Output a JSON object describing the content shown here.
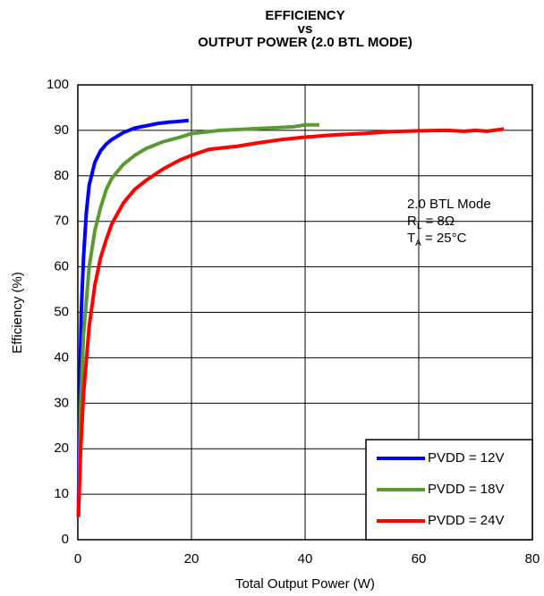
{
  "chart_data": {
    "type": "line",
    "title": [
      "EFFICIENCY",
      "vs",
      "OUTPUT POWER (2.0 BTL MODE)"
    ],
    "x_label": "Total Output Power (W)",
    "y_label": "Efficiency (%)",
    "xlim": [
      0,
      80
    ],
    "xticks": [
      0,
      20,
      40,
      60,
      80
    ],
    "ylim": [
      0,
      100
    ],
    "yticks": [
      0,
      10,
      20,
      30,
      40,
      50,
      60,
      70,
      80,
      90,
      100
    ],
    "grid": true,
    "legend": "lower right",
    "annotation": [
      {
        "main": "2.0 BTL Mode"
      },
      {
        "main": "R",
        "sub": "L",
        "after": " = 8Ω"
      },
      {
        "main": "T",
        "sub": "A",
        "after": " = 25°C"
      }
    ],
    "series": [
      {
        "name": "PVDD = 12V",
        "color": "#0000ff",
        "x": [
          0.1,
          0.3,
          0.6,
          1,
          1.5,
          2,
          3,
          4,
          5,
          6,
          8,
          10,
          12,
          14,
          16,
          18,
          19.5
        ],
        "values": [
          5,
          30,
          50,
          62,
          72,
          78,
          83,
          85.5,
          87,
          88,
          89.5,
          90.5,
          91,
          91.5,
          91.8,
          92,
          92.2
        ]
      },
      {
        "name": "PVDD = 18V",
        "color": "#5b9a32",
        "x": [
          0.2,
          0.5,
          1,
          2,
          3,
          4,
          5,
          6,
          8,
          10,
          12,
          15,
          18,
          20,
          25,
          30,
          35,
          38,
          40,
          42.5
        ],
        "values": [
          10,
          30,
          45,
          60,
          68,
          73,
          77,
          79.5,
          82.5,
          84.5,
          86,
          87.5,
          88.5,
          89.3,
          90,
          90.3,
          90.6,
          90.8,
          91.2,
          91.2
        ]
      },
      {
        "name": "PVDD = 24V",
        "color": "#ff0000",
        "x": [
          0.1,
          0.5,
          1,
          2,
          3,
          4,
          5,
          6,
          8,
          10,
          12,
          15,
          18,
          20,
          23,
          28,
          32,
          36,
          40,
          45,
          50,
          55,
          60,
          65,
          68,
          70,
          72,
          75
        ],
        "values": [
          5,
          20,
          32,
          47,
          56,
          62,
          66,
          69.5,
          74,
          77,
          79,
          81.5,
          83.5,
          84.5,
          85.8,
          86.5,
          87.3,
          88,
          88.5,
          89,
          89.3,
          89.7,
          89.9,
          90,
          89.8,
          90,
          89.8,
          90.3
        ]
      }
    ]
  }
}
